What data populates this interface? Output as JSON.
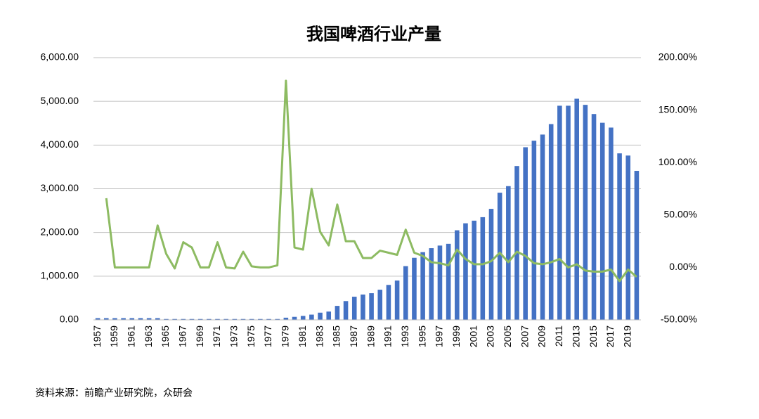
{
  "chart_data": {
    "type": "bar",
    "title": "我国啤酒行业产量",
    "categories": [
      "1957",
      null,
      "1959",
      null,
      "1961",
      null,
      "1963",
      null,
      "1965",
      null,
      "1967",
      null,
      "1969",
      null,
      "1971",
      null,
      "1973",
      null,
      "1975",
      null,
      "1977",
      null,
      "1979",
      null,
      "1981",
      null,
      "1983",
      null,
      "1985",
      null,
      "1987",
      null,
      "1989",
      null,
      "1991",
      null,
      "1993",
      null,
      "1995",
      null,
      "1997",
      null,
      "1999",
      null,
      "2001",
      null,
      "2003",
      null,
      "2005",
      null,
      "2007",
      null,
      "2009",
      null,
      "2011",
      null,
      "2013",
      null,
      "2015",
      null,
      "2017",
      null,
      "2019",
      null
    ],
    "series": [
      {
        "type": "bar",
        "color": "#4472c4",
        "values": [
          40,
          40,
          40,
          40,
          40,
          40,
          40,
          40,
          20,
          20,
          20,
          20,
          20,
          20,
          20,
          20,
          20,
          20,
          20,
          20,
          20,
          20,
          50,
          69,
          91,
          120,
          165,
          190,
          320,
          430,
          530,
          580,
          610,
          690,
          800,
          900,
          1230,
          1420,
          1550,
          1640,
          1700,
          1740,
          2050,
          2210,
          2270,
          2350,
          2540,
          2910,
          3060,
          3520,
          3950,
          4100,
          4240,
          4480,
          4900,
          4900,
          5060,
          4920,
          4710,
          4510,
          4400,
          3810,
          3760,
          3410
        ]
      },
      {
        "type": "line",
        "axis": "y2",
        "color": "#8dbb62",
        "values": [
          null,
          66,
          0,
          0,
          0,
          0,
          0,
          40,
          13,
          -1,
          24,
          19,
          0,
          0,
          24,
          0,
          -1,
          15,
          1,
          0,
          0,
          2,
          178,
          19,
          17,
          75,
          34,
          21,
          60,
          25,
          25,
          9,
          9,
          16,
          14,
          12,
          36,
          14,
          11,
          5,
          4,
          2,
          17,
          8,
          3,
          3,
          6,
          14,
          5,
          15,
          11,
          4,
          3,
          5,
          8,
          0,
          3,
          -3,
          -4,
          -4,
          -2,
          -13,
          -2,
          -9
        ]
      }
    ],
    "ylim": [
      0,
      6000
    ],
    "yticks": [
      {
        "value": 0,
        "label": "0.00"
      },
      {
        "value": 1000,
        "label": "1,000.00"
      },
      {
        "value": 2000,
        "label": "2,000.00"
      },
      {
        "value": 3000,
        "label": "3,000.00"
      },
      {
        "value": 4000,
        "label": "4,000.00"
      },
      {
        "value": 5000,
        "label": "5,000.00"
      },
      {
        "value": 6000,
        "label": "6,000.00"
      }
    ],
    "y2lim": [
      -50,
      200
    ],
    "y2ticks": [
      {
        "value": -50,
        "label": "-50.00%"
      },
      {
        "value": 0,
        "label": "0.00%"
      },
      {
        "value": 50,
        "label": "50.00%"
      },
      {
        "value": 100,
        "label": "100.00%"
      },
      {
        "value": 150,
        "label": "150.00%"
      },
      {
        "value": 200,
        "label": "200.00%"
      }
    ],
    "grid": true,
    "source": "资料来源：前瞻产业研究院，众研会"
  }
}
